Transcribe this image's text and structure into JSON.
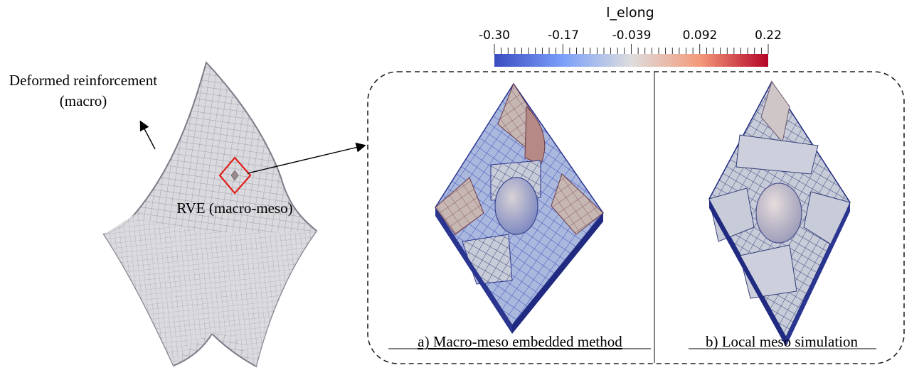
{
  "colorbar": {
    "title": "l_elong",
    "ticks": [
      "-0.30",
      "-0.17",
      "-0.039",
      "0.092",
      "0.22"
    ],
    "colors": {
      "low": "#3b4cc0",
      "mid": "#dddddd",
      "high": "#b40426"
    }
  },
  "labels": {
    "macro_line1": "Deformed reinforcement",
    "macro_line2": "(macro)",
    "rve": "RVE (macro-meso)",
    "panel_a": "a)  Macro-meso embedded method",
    "panel_b": "b) Local meso simulation"
  },
  "colors": {
    "rve_outline": "#e0201a",
    "mesh_fill": "#d8d8dc",
    "mesh_line": "#8a8a94"
  }
}
